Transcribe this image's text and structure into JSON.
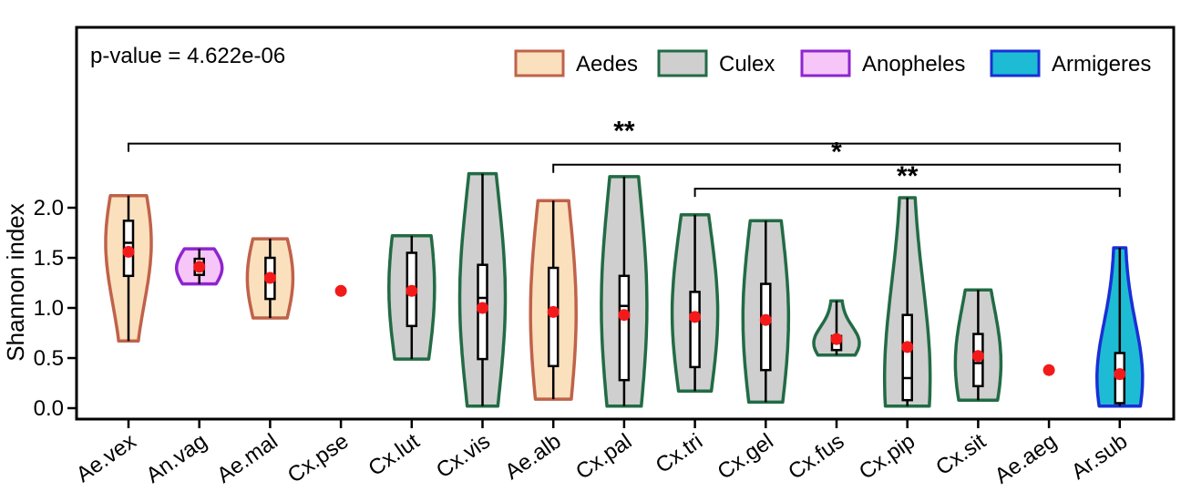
{
  "chart_data": {
    "type": "violin",
    "ylabel": "Shannon index",
    "ylim": [
      -0.12,
      3.8
    ],
    "yticks": [
      "0.0",
      "0.5",
      "1.0",
      "1.5",
      "2.0"
    ],
    "annotation": "p-value = 4.622e-06",
    "legend": {
      "position": "top-right",
      "entries": [
        {
          "name": "Aedes",
          "fill": "#fbe0be",
          "stroke": "#c0624a"
        },
        {
          "name": "Culex",
          "fill": "#cfcfcf",
          "stroke": "#226b45"
        },
        {
          "name": "Anopheles",
          "fill": "#f6c6f8",
          "stroke": "#8f24cf"
        },
        {
          "name": "Armigeres",
          "fill": "#1dbcd4",
          "stroke": "#1a2fd6"
        }
      ]
    },
    "categories": [
      "Ae.vex",
      "An.vag",
      "Ae.mal",
      "Cx.pse",
      "Cx.lut",
      "Cx.vis",
      "Ae.alb",
      "Cx.pal",
      "Cx.tri",
      "Cx.gel",
      "Cx.fus",
      "Cx.pip",
      "Cx.sit",
      "Ae.aeg",
      "Ar.sub"
    ],
    "groups": [
      "Aedes",
      "Anopheles",
      "Aedes",
      "Culex",
      "Culex",
      "Culex",
      "Aedes",
      "Culex",
      "Culex",
      "Culex",
      "Culex",
      "Culex",
      "Culex",
      "Aedes",
      "Armigeres"
    ],
    "stats": [
      {
        "min": 0.67,
        "q1": 1.32,
        "median": 1.65,
        "q3": 1.87,
        "max": 2.12,
        "mean": 1.56
      },
      {
        "min": 1.24,
        "q1": 1.33,
        "median": 1.4,
        "q3": 1.49,
        "max": 1.59,
        "mean": 1.41
      },
      {
        "min": 0.9,
        "q1": 1.09,
        "median": 1.3,
        "q3": 1.5,
        "max": 1.69,
        "mean": 1.3
      },
      {
        "min": 1.17,
        "q1": 1.17,
        "median": 1.17,
        "q3": 1.17,
        "max": 1.17,
        "mean": 1.17
      },
      {
        "min": 0.49,
        "q1": 0.82,
        "median": 1.2,
        "q3": 1.55,
        "max": 1.72,
        "mean": 1.17
      },
      {
        "min": 0.02,
        "q1": 0.49,
        "median": 1.1,
        "q3": 1.43,
        "max": 2.34,
        "mean": 1.0
      },
      {
        "min": 0.09,
        "q1": 0.42,
        "median": 0.95,
        "q3": 1.4,
        "max": 2.07,
        "mean": 0.96
      },
      {
        "min": 0.02,
        "q1": 0.28,
        "median": 1.02,
        "q3": 1.32,
        "max": 2.31,
        "mean": 0.93
      },
      {
        "min": 0.17,
        "q1": 0.41,
        "median": 0.95,
        "q3": 1.16,
        "max": 1.93,
        "mean": 0.91
      },
      {
        "min": 0.06,
        "q1": 0.38,
        "median": 0.9,
        "q3": 1.24,
        "max": 1.87,
        "mean": 0.88
      },
      {
        "min": 0.53,
        "q1": 0.58,
        "median": 0.65,
        "q3": 0.72,
        "max": 1.07,
        "mean": 0.69
      },
      {
        "min": 0.02,
        "q1": 0.08,
        "median": 0.3,
        "q3": 0.93,
        "max": 2.1,
        "mean": 0.61
      },
      {
        "min": 0.08,
        "q1": 0.22,
        "median": 0.45,
        "q3": 0.74,
        "max": 1.18,
        "mean": 0.52
      },
      {
        "min": 0.38,
        "q1": 0.38,
        "median": 0.38,
        "q3": 0.38,
        "max": 0.38,
        "mean": 0.38
      },
      {
        "min": 0.02,
        "q1": 0.05,
        "median": 0.3,
        "q3": 0.55,
        "max": 1.6,
        "mean": 0.34
      }
    ],
    "significance": [
      {
        "from": "Ae.vex",
        "to": "Ar.sub",
        "label": "**",
        "y": 2.64
      },
      {
        "from": "Ae.alb",
        "to": "Ar.sub",
        "label": "*",
        "y": 2.43
      },
      {
        "from": "Cx.tri",
        "to": "Ar.sub",
        "label": "**",
        "y": 2.19
      }
    ]
  }
}
